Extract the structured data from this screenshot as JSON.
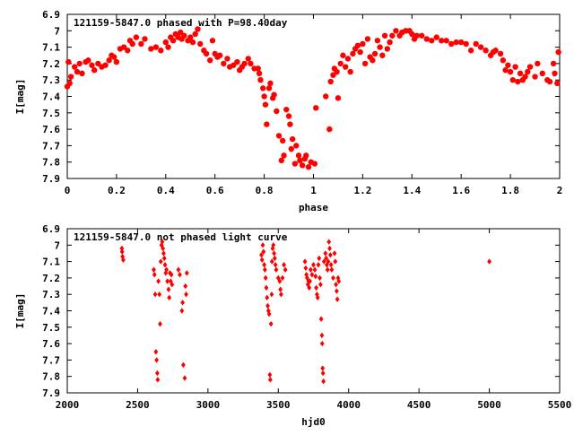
{
  "colors": {
    "points": "#ff0000",
    "axis": "#000000",
    "background": "#ffffff"
  },
  "chart_data": [
    {
      "type": "scatter",
      "title": "121159-5847.0 phased with P=98.40day",
      "xlabel": "phase",
      "ylabel": "I[mag]",
      "xlim": [
        0,
        2
      ],
      "ylim": [
        7.9,
        6.9
      ],
      "y_inverted": true,
      "grid": false,
      "marker": "filled-circle",
      "xticks": [
        0,
        0.2,
        0.4,
        0.6,
        0.8,
        1,
        1.2,
        1.4,
        1.6,
        1.8,
        2
      ],
      "xtick_labels": [
        "0",
        "0.2",
        "0.4",
        "0.6",
        "0.8",
        "1",
        "1.2",
        "1.4",
        "1.6",
        "1.8",
        "2"
      ],
      "yticks": [
        6.9,
        7,
        7.1,
        7.2,
        7.3,
        7.4,
        7.5,
        7.6,
        7.7,
        7.8,
        7.9
      ],
      "ytick_labels": [
        "6.9",
        "7",
        "7.1",
        "7.2",
        "7.3",
        "7.4",
        "7.5",
        "7.6",
        "7.7",
        "7.8",
        "7.9"
      ],
      "points": [
        [
          0.0,
          7.34
        ],
        [
          0.005,
          7.19
        ],
        [
          0.01,
          7.32
        ],
        [
          0.015,
          7.28
        ],
        [
          0.03,
          7.22
        ],
        [
          0.04,
          7.25
        ],
        [
          0.05,
          7.2
        ],
        [
          0.06,
          7.26
        ],
        [
          0.075,
          7.19
        ],
        [
          0.085,
          7.18
        ],
        [
          0.1,
          7.21
        ],
        [
          0.11,
          7.24
        ],
        [
          0.125,
          7.2
        ],
        [
          0.14,
          7.22
        ],
        [
          0.155,
          7.21
        ],
        [
          0.17,
          7.18
        ],
        [
          0.18,
          7.15
        ],
        [
          0.19,
          7.16
        ],
        [
          0.2,
          7.19
        ],
        [
          0.215,
          7.11
        ],
        [
          0.23,
          7.1
        ],
        [
          0.245,
          7.12
        ],
        [
          0.255,
          7.06
        ],
        [
          0.265,
          7.08
        ],
        [
          0.28,
          7.04
        ],
        [
          0.3,
          7.08
        ],
        [
          0.315,
          7.05
        ],
        [
          0.34,
          7.11
        ],
        [
          0.36,
          7.1
        ],
        [
          0.38,
          7.12
        ],
        [
          0.4,
          7.07
        ],
        [
          0.41,
          7.1
        ],
        [
          0.42,
          7.04
        ],
        [
          0.43,
          7.06
        ],
        [
          0.44,
          7.02
        ],
        [
          0.45,
          7.04
        ],
        [
          0.46,
          7.01
        ],
        [
          0.465,
          7.05
        ],
        [
          0.475,
          7.03
        ],
        [
          0.49,
          7.06
        ],
        [
          0.5,
          7.04
        ],
        [
          0.51,
          7.07
        ],
        [
          0.52,
          7.02
        ],
        [
          0.53,
          6.99
        ],
        [
          0.54,
          7.08
        ],
        [
          0.555,
          7.12
        ],
        [
          0.565,
          7.14
        ],
        [
          0.58,
          7.18
        ],
        [
          0.59,
          7.06
        ],
        [
          0.6,
          7.14
        ],
        [
          0.61,
          7.16
        ],
        [
          0.62,
          7.15
        ],
        [
          0.635,
          7.2
        ],
        [
          0.65,
          7.17
        ],
        [
          0.66,
          7.22
        ],
        [
          0.675,
          7.21
        ],
        [
          0.69,
          7.19
        ],
        [
          0.7,
          7.24
        ],
        [
          0.71,
          7.22
        ],
        [
          0.72,
          7.2
        ],
        [
          0.735,
          7.17
        ],
        [
          0.745,
          7.2
        ],
        [
          0.76,
          7.23
        ],
        [
          0.775,
          7.23
        ],
        [
          0.78,
          7.26
        ],
        [
          0.785,
          7.3
        ],
        [
          0.795,
          7.35
        ],
        [
          0.8,
          7.4
        ],
        [
          0.805,
          7.45
        ],
        [
          0.81,
          7.57
        ],
        [
          0.82,
          7.35
        ],
        [
          0.825,
          7.32
        ],
        [
          0.835,
          7.41
        ],
        [
          0.84,
          7.39
        ],
        [
          0.85,
          7.49
        ],
        [
          0.86,
          7.64
        ],
        [
          0.87,
          7.79
        ],
        [
          0.875,
          7.67
        ],
        [
          0.88,
          7.76
        ],
        [
          0.89,
          7.48
        ],
        [
          0.9,
          7.52
        ],
        [
          0.905,
          7.57
        ],
        [
          0.91,
          7.72
        ],
        [
          0.915,
          7.66
        ],
        [
          0.925,
          7.81
        ],
        [
          0.93,
          7.7
        ],
        [
          0.94,
          7.76
        ],
        [
          0.945,
          7.79
        ],
        [
          0.955,
          7.82
        ],
        [
          0.965,
          7.78
        ],
        [
          0.97,
          7.76
        ],
        [
          0.98,
          7.83
        ],
        [
          0.99,
          7.8
        ],
        [
          1.005,
          7.81
        ],
        [
          1.01,
          7.47
        ],
        [
          1.05,
          7.4
        ],
        [
          1.065,
          7.6
        ],
        [
          1.07,
          7.31
        ],
        [
          1.08,
          7.27
        ],
        [
          1.085,
          7.23
        ],
        [
          1.095,
          7.25
        ],
        [
          1.1,
          7.41
        ],
        [
          1.11,
          7.2
        ],
        [
          1.12,
          7.15
        ],
        [
          1.13,
          7.22
        ],
        [
          1.14,
          7.17
        ],
        [
          1.15,
          7.25
        ],
        [
          1.16,
          7.14
        ],
        [
          1.17,
          7.11
        ],
        [
          1.18,
          7.09
        ],
        [
          1.19,
          7.13
        ],
        [
          1.2,
          7.08
        ],
        [
          1.21,
          7.2
        ],
        [
          1.22,
          7.05
        ],
        [
          1.23,
          7.16
        ],
        [
          1.24,
          7.18
        ],
        [
          1.25,
          7.14
        ],
        [
          1.26,
          7.06
        ],
        [
          1.27,
          7.1
        ],
        [
          1.28,
          7.15
        ],
        [
          1.29,
          7.03
        ],
        [
          1.3,
          7.11
        ],
        [
          1.31,
          7.07
        ],
        [
          1.32,
          7.03
        ],
        [
          1.335,
          7.0
        ],
        [
          1.35,
          7.03
        ],
        [
          1.36,
          7.01
        ],
        [
          1.375,
          7.0
        ],
        [
          1.39,
          7.0
        ],
        [
          1.4,
          7.02
        ],
        [
          1.41,
          7.05
        ],
        [
          1.42,
          7.03
        ],
        [
          1.44,
          7.03
        ],
        [
          1.46,
          7.05
        ],
        [
          1.48,
          7.06
        ],
        [
          1.5,
          7.04
        ],
        [
          1.52,
          7.06
        ],
        [
          1.54,
          7.06
        ],
        [
          1.56,
          7.08
        ],
        [
          1.58,
          7.07
        ],
        [
          1.6,
          7.07
        ],
        [
          1.62,
          7.08
        ],
        [
          1.64,
          7.12
        ],
        [
          1.66,
          7.08
        ],
        [
          1.68,
          7.1
        ],
        [
          1.7,
          7.12
        ],
        [
          1.72,
          7.15
        ],
        [
          1.73,
          7.13
        ],
        [
          1.74,
          7.12
        ],
        [
          1.76,
          7.14
        ],
        [
          1.77,
          7.18
        ],
        [
          1.78,
          7.24
        ],
        [
          1.79,
          7.21
        ],
        [
          1.8,
          7.25
        ],
        [
          1.81,
          7.3
        ],
        [
          1.82,
          7.22
        ],
        [
          1.83,
          7.31
        ],
        [
          1.84,
          7.26
        ],
        [
          1.85,
          7.3
        ],
        [
          1.86,
          7.28
        ],
        [
          1.87,
          7.25
        ],
        [
          1.88,
          7.22
        ],
        [
          1.9,
          7.28
        ],
        [
          1.91,
          7.2
        ],
        [
          1.93,
          7.26
        ],
        [
          1.95,
          7.3
        ],
        [
          1.96,
          7.31
        ],
        [
          1.975,
          7.2
        ],
        [
          1.98,
          7.26
        ],
        [
          1.99,
          7.32
        ],
        [
          1.995,
          7.13
        ]
      ]
    },
    {
      "type": "scatter",
      "title": "121159-5847.0 not phased light curve",
      "xlabel": "hjd0",
      "ylabel": "I[mag]",
      "xlim": [
        2000,
        5500
      ],
      "ylim": [
        7.9,
        6.9
      ],
      "y_inverted": true,
      "grid": false,
      "marker": "small-diamond",
      "xticks": [
        2000,
        2500,
        3000,
        3500,
        4000,
        4500,
        5000,
        5500
      ],
      "xtick_labels": [
        "2000",
        "2500",
        "3000",
        "3500",
        "4000",
        "4500",
        "5000",
        "5500"
      ],
      "yticks": [
        6.9,
        7,
        7.1,
        7.2,
        7.3,
        7.4,
        7.5,
        7.6,
        7.7,
        7.8,
        7.9
      ],
      "ytick_labels": [
        "6.9",
        "7",
        "7.1",
        "7.2",
        "7.3",
        "7.4",
        "7.5",
        "7.6",
        "7.7",
        "7.8",
        "7.9"
      ],
      "points": [
        [
          2388,
          7.02
        ],
        [
          2390,
          7.04
        ],
        [
          2393,
          7.07
        ],
        [
          2398,
          7.09
        ],
        [
          2615,
          7.15
        ],
        [
          2620,
          7.18
        ],
        [
          2625,
          7.3
        ],
        [
          2630,
          7.65
        ],
        [
          2635,
          7.7
        ],
        [
          2640,
          7.78
        ],
        [
          2643,
          7.82
        ],
        [
          2648,
          7.22
        ],
        [
          2655,
          7.3
        ],
        [
          2660,
          7.48
        ],
        [
          2665,
          7.1
        ],
        [
          2670,
          7.0
        ],
        [
          2675,
          6.98
        ],
        [
          2680,
          7.02
        ],
        [
          2685,
          7.05
        ],
        [
          2690,
          7.08
        ],
        [
          2695,
          7.12
        ],
        [
          2700,
          7.17
        ],
        [
          2705,
          7.15
        ],
        [
          2712,
          7.22
        ],
        [
          2720,
          7.27
        ],
        [
          2725,
          7.32
        ],
        [
          2730,
          7.17
        ],
        [
          2735,
          7.22
        ],
        [
          2740,
          7.18
        ],
        [
          2745,
          7.24
        ],
        [
          2790,
          7.15
        ],
        [
          2800,
          7.18
        ],
        [
          2815,
          7.4
        ],
        [
          2820,
          7.35
        ],
        [
          2825,
          7.73
        ],
        [
          2835,
          7.81
        ],
        [
          2840,
          7.25
        ],
        [
          2845,
          7.3
        ],
        [
          2850,
          7.17
        ],
        [
          3380,
          7.06
        ],
        [
          3385,
          7.09
        ],
        [
          3390,
          7.0
        ],
        [
          3395,
          7.04
        ],
        [
          3400,
          7.12
        ],
        [
          3405,
          7.15
        ],
        [
          3410,
          7.2
        ],
        [
          3415,
          7.26
        ],
        [
          3420,
          7.32
        ],
        [
          3425,
          7.37
        ],
        [
          3430,
          7.4
        ],
        [
          3435,
          7.42
        ],
        [
          3440,
          7.79
        ],
        [
          3443,
          7.82
        ],
        [
          3448,
          7.48
        ],
        [
          3453,
          7.3
        ],
        [
          3455,
          7.1
        ],
        [
          3460,
          7.02
        ],
        [
          3465,
          7.0
        ],
        [
          3470,
          7.05
        ],
        [
          3475,
          7.08
        ],
        [
          3480,
          7.12
        ],
        [
          3485,
          7.15
        ],
        [
          3500,
          7.2
        ],
        [
          3510,
          7.22
        ],
        [
          3515,
          7.27
        ],
        [
          3520,
          7.3
        ],
        [
          3530,
          7.2
        ],
        [
          3540,
          7.12
        ],
        [
          3550,
          7.15
        ],
        [
          3690,
          7.1
        ],
        [
          3695,
          7.14
        ],
        [
          3700,
          7.18
        ],
        [
          3705,
          7.2
        ],
        [
          3710,
          7.24
        ],
        [
          3715,
          7.22
        ],
        [
          3720,
          7.26
        ],
        [
          3725,
          7.22
        ],
        [
          3730,
          7.15
        ],
        [
          3740,
          7.18
        ],
        [
          3750,
          7.12
        ],
        [
          3760,
          7.15
        ],
        [
          3765,
          7.19
        ],
        [
          3770,
          7.26
        ],
        [
          3775,
          7.3
        ],
        [
          3780,
          7.32
        ],
        [
          3785,
          7.12
        ],
        [
          3790,
          7.08
        ],
        [
          3795,
          7.2
        ],
        [
          3800,
          7.24
        ],
        [
          3805,
          7.45
        ],
        [
          3810,
          7.55
        ],
        [
          3812,
          7.6
        ],
        [
          3815,
          7.75
        ],
        [
          3818,
          7.78
        ],
        [
          3821,
          7.83
        ],
        [
          3825,
          7.1
        ],
        [
          3835,
          7.05
        ],
        [
          3840,
          7.08
        ],
        [
          3845,
          7.12
        ],
        [
          3850,
          7.15
        ],
        [
          3855,
          7.1
        ],
        [
          3860,
          6.98
        ],
        [
          3865,
          7.02
        ],
        [
          3870,
          7.06
        ],
        [
          3875,
          7.12
        ],
        [
          3880,
          7.15
        ],
        [
          3890,
          7.2
        ],
        [
          3900,
          7.05
        ],
        [
          3905,
          7.1
        ],
        [
          3910,
          7.24
        ],
        [
          3915,
          7.28
        ],
        [
          3920,
          7.33
        ],
        [
          3925,
          7.2
        ],
        [
          3930,
          7.22
        ],
        [
          5000,
          7.1
        ]
      ]
    }
  ]
}
